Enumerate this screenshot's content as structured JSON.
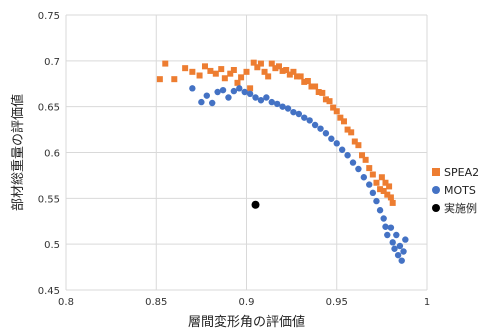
{
  "chart_data": {
    "type": "scatter",
    "xlabel": "層間変形角の評価値",
    "ylabel": "部材総重量の評価値",
    "xlim": [
      0.8,
      1.0
    ],
    "ylim": [
      0.45,
      0.75
    ],
    "xticks": [
      "0.8",
      "0.85",
      "0.9",
      "0.95",
      "1"
    ],
    "xtick_values": [
      0.8,
      0.85,
      0.9,
      0.95,
      1.0
    ],
    "yticks": [
      "0.45",
      "0.5",
      "0.55",
      "0.6",
      "0.65",
      "0.7",
      "0.75"
    ],
    "ytick_values": [
      0.45,
      0.5,
      0.55,
      0.6,
      0.65,
      0.7,
      0.75
    ],
    "grid": true,
    "legend_placement": "right",
    "series": [
      {
        "name": "SPEA2",
        "marker": "square",
        "color": "#ED7D31",
        "points": [
          [
            0.852,
            0.68
          ],
          [
            0.855,
            0.697
          ],
          [
            0.86,
            0.68
          ],
          [
            0.866,
            0.692
          ],
          [
            0.87,
            0.688
          ],
          [
            0.874,
            0.684
          ],
          [
            0.877,
            0.694
          ],
          [
            0.88,
            0.689
          ],
          [
            0.883,
            0.686
          ],
          [
            0.886,
            0.691
          ],
          [
            0.888,
            0.681
          ],
          [
            0.891,
            0.686
          ],
          [
            0.893,
            0.69
          ],
          [
            0.895,
            0.676
          ],
          [
            0.897,
            0.682
          ],
          [
            0.9,
            0.688
          ],
          [
            0.902,
            0.67
          ],
          [
            0.904,
            0.698
          ],
          [
            0.906,
            0.693
          ],
          [
            0.908,
            0.697
          ],
          [
            0.91,
            0.688
          ],
          [
            0.912,
            0.683
          ],
          [
            0.914,
            0.697
          ],
          [
            0.916,
            0.692
          ],
          [
            0.918,
            0.694
          ],
          [
            0.92,
            0.689
          ],
          [
            0.922,
            0.69
          ],
          [
            0.924,
            0.685
          ],
          [
            0.926,
            0.688
          ],
          [
            0.928,
            0.683
          ],
          [
            0.93,
            0.683
          ],
          [
            0.932,
            0.677
          ],
          [
            0.934,
            0.678
          ],
          [
            0.936,
            0.672
          ],
          [
            0.938,
            0.672
          ],
          [
            0.94,
            0.666
          ],
          [
            0.942,
            0.665
          ],
          [
            0.944,
            0.658
          ],
          [
            0.946,
            0.656
          ],
          [
            0.948,
            0.649
          ],
          [
            0.95,
            0.645
          ],
          [
            0.952,
            0.638
          ],
          [
            0.954,
            0.634
          ],
          [
            0.956,
            0.625
          ],
          [
            0.958,
            0.622
          ],
          [
            0.96,
            0.612
          ],
          [
            0.962,
            0.608
          ],
          [
            0.964,
            0.597
          ],
          [
            0.966,
            0.592
          ],
          [
            0.968,
            0.583
          ],
          [
            0.97,
            0.576
          ],
          [
            0.972,
            0.567
          ],
          [
            0.974,
            0.56
          ],
          [
            0.975,
            0.573
          ],
          [
            0.976,
            0.558
          ],
          [
            0.977,
            0.567
          ],
          [
            0.978,
            0.554
          ],
          [
            0.979,
            0.563
          ],
          [
            0.98,
            0.551
          ],
          [
            0.981,
            0.545
          ]
        ]
      },
      {
        "name": "MOTS",
        "marker": "circle",
        "color": "#4472C4",
        "points": [
          [
            0.87,
            0.67
          ],
          [
            0.875,
            0.655
          ],
          [
            0.878,
            0.662
          ],
          [
            0.881,
            0.654
          ],
          [
            0.884,
            0.666
          ],
          [
            0.887,
            0.668
          ],
          [
            0.89,
            0.66
          ],
          [
            0.893,
            0.667
          ],
          [
            0.896,
            0.67
          ],
          [
            0.899,
            0.666
          ],
          [
            0.902,
            0.664
          ],
          [
            0.905,
            0.66
          ],
          [
            0.908,
            0.657
          ],
          [
            0.911,
            0.66
          ],
          [
            0.914,
            0.655
          ],
          [
            0.917,
            0.653
          ],
          [
            0.92,
            0.65
          ],
          [
            0.923,
            0.648
          ],
          [
            0.926,
            0.644
          ],
          [
            0.929,
            0.642
          ],
          [
            0.932,
            0.638
          ],
          [
            0.935,
            0.635
          ],
          [
            0.938,
            0.63
          ],
          [
            0.941,
            0.626
          ],
          [
            0.944,
            0.621
          ],
          [
            0.947,
            0.615
          ],
          [
            0.95,
            0.61
          ],
          [
            0.953,
            0.603
          ],
          [
            0.956,
            0.597
          ],
          [
            0.959,
            0.589
          ],
          [
            0.962,
            0.582
          ],
          [
            0.965,
            0.573
          ],
          [
            0.968,
            0.565
          ],
          [
            0.97,
            0.556
          ],
          [
            0.972,
            0.547
          ],
          [
            0.974,
            0.537
          ],
          [
            0.976,
            0.528
          ],
          [
            0.977,
            0.519
          ],
          [
            0.978,
            0.51
          ],
          [
            0.98,
            0.518
          ],
          [
            0.981,
            0.502
          ],
          [
            0.982,
            0.495
          ],
          [
            0.983,
            0.51
          ],
          [
            0.984,
            0.488
          ],
          [
            0.985,
            0.498
          ],
          [
            0.986,
            0.482
          ],
          [
            0.987,
            0.492
          ],
          [
            0.988,
            0.505
          ]
        ]
      },
      {
        "name": "実施例",
        "marker": "circle",
        "color": "#000000",
        "points": [
          [
            0.905,
            0.543
          ]
        ]
      }
    ]
  }
}
